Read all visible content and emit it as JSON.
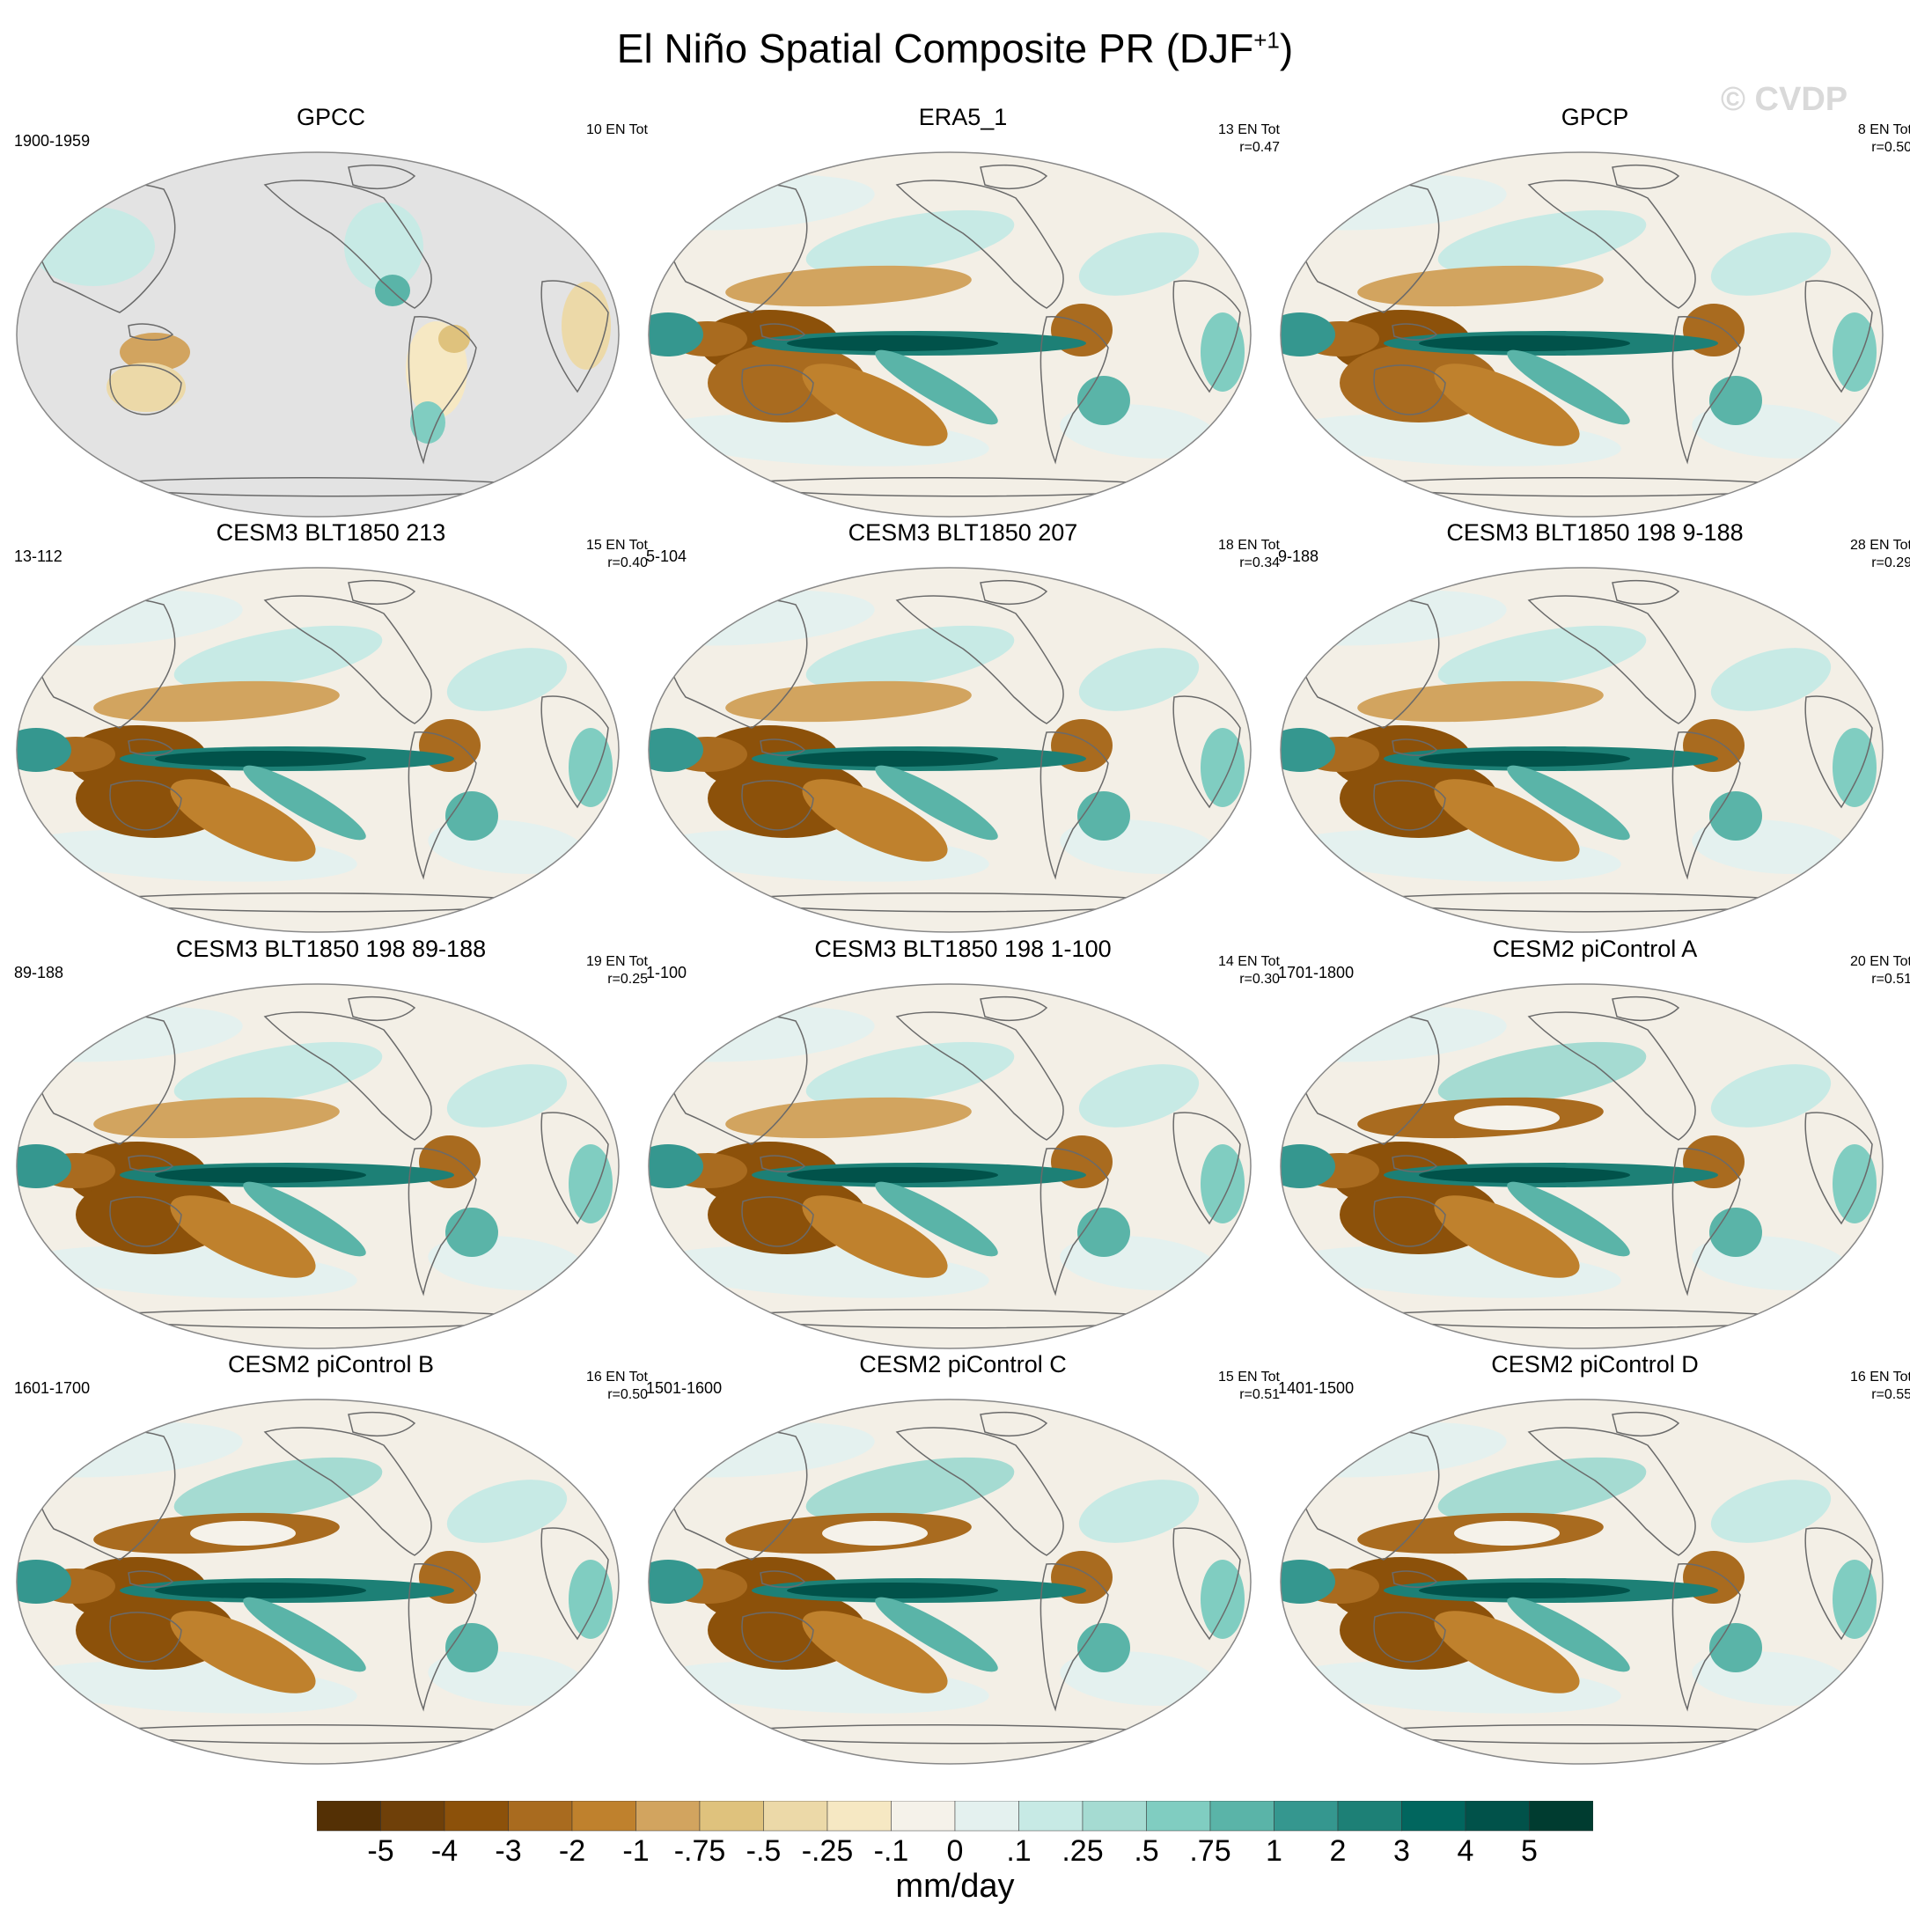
{
  "title": {
    "main": "El Niño Spatial Composite PR (DJF",
    "sup": "+1",
    "close": ")"
  },
  "watermark": "© CVDP",
  "panels": [
    {
      "title": "GPCC",
      "left": "1900-1959",
      "right1": "10 EN Tot",
      "right2": "",
      "pattern": "gpcc"
    },
    {
      "title": "ERA5_1",
      "left": "",
      "right1": "13 EN Tot",
      "right2": "r=0.47",
      "pattern": "obs"
    },
    {
      "title": "GPCP",
      "left": "",
      "right1": "8 EN Tot",
      "right2": "r=0.50",
      "pattern": "obs"
    },
    {
      "title": "CESM3 BLT1850 213",
      "left": "13-112",
      "right1": "15 EN Tot",
      "right2": "r=0.40",
      "pattern": "cesm3"
    },
    {
      "title": "CESM3 BLT1850 207",
      "left": "5-104",
      "right1": "18 EN Tot",
      "right2": "r=0.34",
      "pattern": "cesm3"
    },
    {
      "title": "CESM3 BLT1850 198 9-188",
      "left": "9-188",
      "right1": "28 EN Tot",
      "right2": "r=0.29",
      "pattern": "cesm3"
    },
    {
      "title": "CESM3 BLT1850 198 89-188",
      "left": "89-188",
      "right1": "19 EN Tot",
      "right2": "r=0.25",
      "pattern": "cesm3"
    },
    {
      "title": "CESM3 BLT1850 198 1-100",
      "left": "1-100",
      "right1": "14 EN Tot",
      "right2": "r=0.30",
      "pattern": "cesm3"
    },
    {
      "title": "CESM2 piControl A",
      "left": "1701-1800",
      "right1": "20 EN Tot",
      "right2": "r=0.51",
      "pattern": "cesm2"
    },
    {
      "title": "CESM2 piControl B",
      "left": "1601-1700",
      "right1": "16 EN Tot",
      "right2": "r=0.50",
      "pattern": "cesm2"
    },
    {
      "title": "CESM2 piControl C",
      "left": "1501-1600",
      "right1": "15 EN Tot",
      "right2": "r=0.51",
      "pattern": "cesm2"
    },
    {
      "title": "CESM2 piControl D",
      "left": "1401-1500",
      "right1": "16 EN Tot",
      "right2": "r=0.55",
      "pattern": "cesm2"
    }
  ],
  "colorbar": {
    "units": "mm/day",
    "labels": [
      "-5",
      "-4",
      "-3",
      "-2",
      "-1",
      "-.75",
      "-.5",
      "-.25",
      "-.1",
      "0",
      ".1",
      ".25",
      ".5",
      ".75",
      "1",
      "2",
      "3",
      "4",
      "5"
    ],
    "colors": [
      "#543005",
      "#6f4009",
      "#8c510a",
      "#a96b1f",
      "#bf812d",
      "#d2a45f",
      "#dfc27d",
      "#ecd9a8",
      "#f6e8c3",
      "#f5f2ea",
      "#e4f1ef",
      "#c7eae5",
      "#a5dbd2",
      "#80cdc1",
      "#5ab4a8",
      "#35978f",
      "#1d8076",
      "#01665e",
      "#01524a",
      "#003c30"
    ]
  },
  "missing_color": "#e3e3e3"
}
